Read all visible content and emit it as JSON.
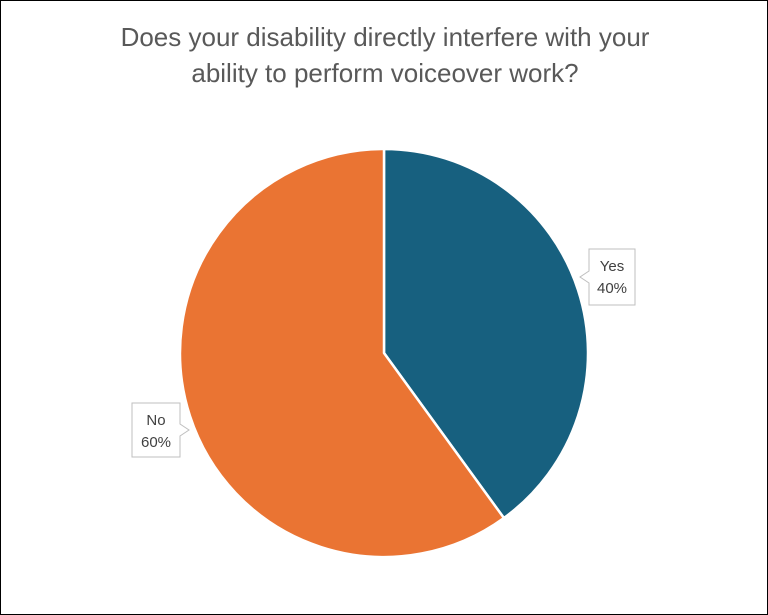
{
  "chart_data": {
    "type": "pie",
    "title_lines": [
      "Does your disability directly interfere with your",
      "ability to perform voiceover work?"
    ],
    "slices": [
      {
        "label": "Yes",
        "value": 40,
        "percent_label": "40%",
        "color": "#17607F"
      },
      {
        "label": "No",
        "value": 60,
        "percent_label": "60%",
        "color": "#EA7433"
      }
    ],
    "start_angle_deg": 0,
    "direction": "clockwise",
    "legend": "none",
    "data_labels": "callouts"
  }
}
